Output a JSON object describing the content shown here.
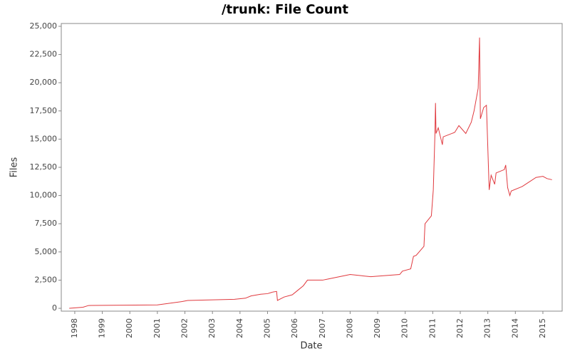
{
  "chart_data": {
    "type": "line",
    "title": "/trunk: File Count",
    "x_label": "Date",
    "y_label": "Files",
    "x": [
      1997.8,
      1998.3,
      1998.5,
      2001.0,
      2001.9,
      2002.1,
      2003.8,
      2004.2,
      2004.4,
      2004.75,
      2005.0,
      2005.2,
      2005.33,
      2005.36,
      2005.6,
      2005.9,
      2006.1,
      2006.3,
      2006.45,
      2007.0,
      2007.2,
      2007.5,
      2007.8,
      2008.0,
      2008.75,
      2009.0,
      2009.8,
      2009.9,
      2010.2,
      2010.3,
      2010.4,
      2010.68,
      2010.72,
      2010.95,
      2011.02,
      2011.08,
      2011.1,
      2011.12,
      2011.2,
      2011.35,
      2011.38,
      2011.8,
      2011.95,
      2012.2,
      2012.4,
      2012.5,
      2012.65,
      2012.7,
      2012.73,
      2012.85,
      2012.95,
      2013.05,
      2013.12,
      2013.25,
      2013.3,
      2013.6,
      2013.65,
      2013.72,
      2013.8,
      2013.85,
      2014.25,
      2014.5,
      2014.75,
      2015.0,
      2015.15,
      2015.33
    ],
    "series": [
      {
        "name": "Files",
        "color": "#e0393e",
        "values": [
          0,
          100,
          250,
          300,
          600,
          700,
          800,
          900,
          1100,
          1250,
          1300,
          1450,
          1500,
          700,
          1000,
          1200,
          1600,
          2000,
          2500,
          2500,
          2600,
          2750,
          2900,
          3000,
          2800,
          2850,
          3000,
          3300,
          3500,
          4600,
          4700,
          5500,
          7500,
          8200,
          10500,
          15500,
          18200,
          15500,
          16000,
          14500,
          15200,
          15600,
          16200,
          15500,
          16500,
          17500,
          19500,
          24000,
          16800,
          17800,
          18000,
          10500,
          11800,
          11000,
          12000,
          12300,
          12700,
          10700,
          10000,
          10400,
          10800,
          11200,
          11600,
          11700,
          11500,
          11400
        ]
      }
    ],
    "xlim": [
      1997.51,
      2015.7
    ],
    "xticks": [
      1998,
      1999,
      2000,
      2001,
      2002,
      2003,
      2004,
      2005,
      2006,
      2007,
      2008,
      2009,
      2010,
      2011,
      2012,
      2013,
      2014,
      2015
    ],
    "ylim": [
      -250,
      25250
    ],
    "yticks": [
      0,
      {
        "value": 2500,
        "label": "2,500"
      },
      {
        "value": 5000,
        "label": "5,000"
      },
      {
        "value": 7500,
        "label": "7,500"
      },
      {
        "value": 10000,
        "label": "10,000"
      },
      {
        "value": 12500,
        "label": "12,500"
      },
      {
        "value": 15000,
        "label": "15,000"
      },
      {
        "value": 17500,
        "label": "17,500"
      },
      {
        "value": 20000,
        "label": "20,000"
      },
      {
        "value": 22500,
        "label": "22,500"
      },
      {
        "value": 25000,
        "label": "25,000"
      }
    ],
    "grid": false
  }
}
